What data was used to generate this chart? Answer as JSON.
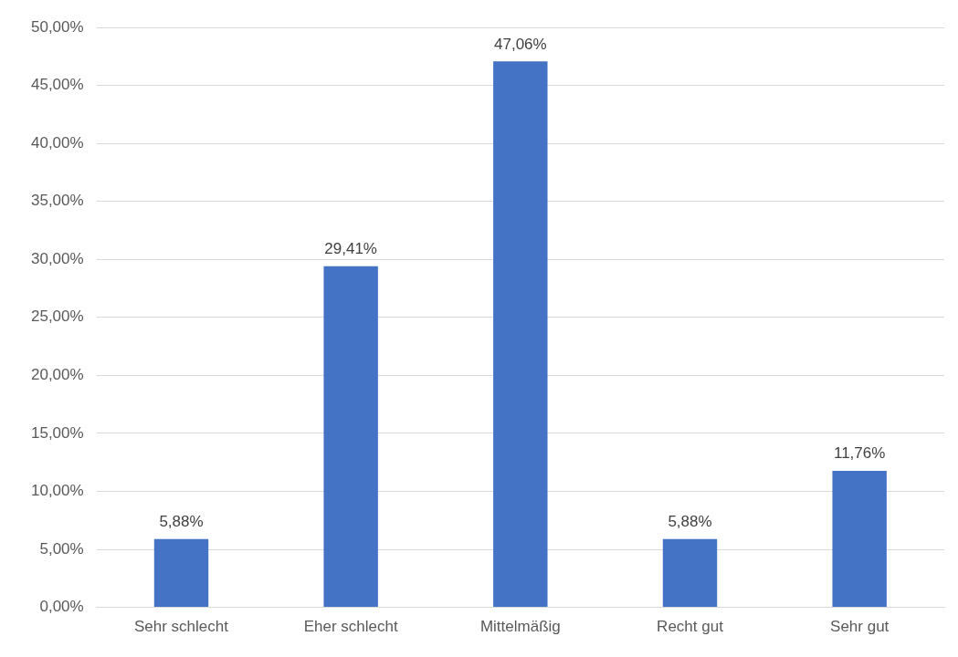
{
  "chart_data": {
    "type": "bar",
    "categories": [
      "Sehr schlecht",
      "Eher schlecht",
      "Mittelmäßig",
      "Recht gut",
      "Sehr gut"
    ],
    "values": [
      5.88,
      29.41,
      47.06,
      5.88,
      11.76
    ],
    "value_labels": [
      "5,88%",
      "29,41%",
      "47,06%",
      "5,88%",
      "11,76%"
    ],
    "color": "#4472c4",
    "ylim": [
      0,
      50
    ],
    "yticks": [
      {
        "value": 0,
        "label": "0,00%"
      },
      {
        "value": 5,
        "label": "5,00%"
      },
      {
        "value": 10,
        "label": "10,00%"
      },
      {
        "value": 15,
        "label": "15,00%"
      },
      {
        "value": 20,
        "label": "20,00%"
      },
      {
        "value": 25,
        "label": "25,00%"
      },
      {
        "value": 30,
        "label": "30,00%"
      },
      {
        "value": 35,
        "label": "35,00%"
      },
      {
        "value": 40,
        "label": "40,00%"
      },
      {
        "value": 45,
        "label": "45,00%"
      },
      {
        "value": 50,
        "label": "50,00%"
      }
    ],
    "grid": "y"
  }
}
